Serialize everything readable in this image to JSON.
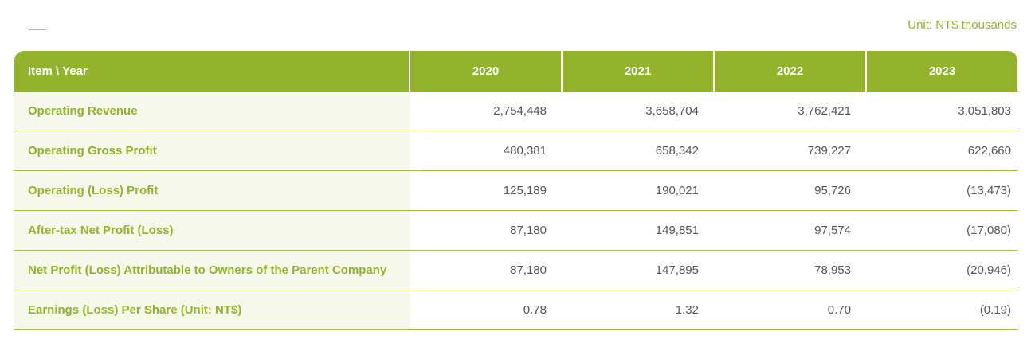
{
  "unit_label": "Unit: NT$ thousands",
  "table": {
    "header": {
      "item_label": "Item \\ Year",
      "years": [
        "2020",
        "2021",
        "2022",
        "2023"
      ]
    },
    "rows": [
      {
        "label": "Operating Revenue",
        "values": [
          "2,754,448",
          "3,658,704",
          "3,762,421",
          "3,051,803"
        ]
      },
      {
        "label": "Operating Gross Profit",
        "values": [
          "480,381",
          "658,342",
          "739,227",
          "622,660"
        ]
      },
      {
        "label": "Operating (Loss) Profit",
        "values": [
          "125,189",
          "190,021",
          "95,726",
          "(13,473)"
        ]
      },
      {
        "label": "After-tax Net Profit (Loss)",
        "values": [
          "87,180",
          "149,851",
          "97,574",
          "(17,080)"
        ]
      },
      {
        "label": "Net Profit (Loss) Attributable to Owners of the Parent Company",
        "values": [
          "87,180",
          "147,895",
          "78,953",
          "(20,946)"
        ]
      },
      {
        "label": "Earnings (Loss) Per Share (Unit: NT$)",
        "values": [
          "0.78",
          "1.32",
          "0.70",
          "(0.19)"
        ]
      }
    ]
  },
  "colors": {
    "accent": "#93b32d",
    "label_bg": "#f5f8ea",
    "value_text": "#555555"
  }
}
